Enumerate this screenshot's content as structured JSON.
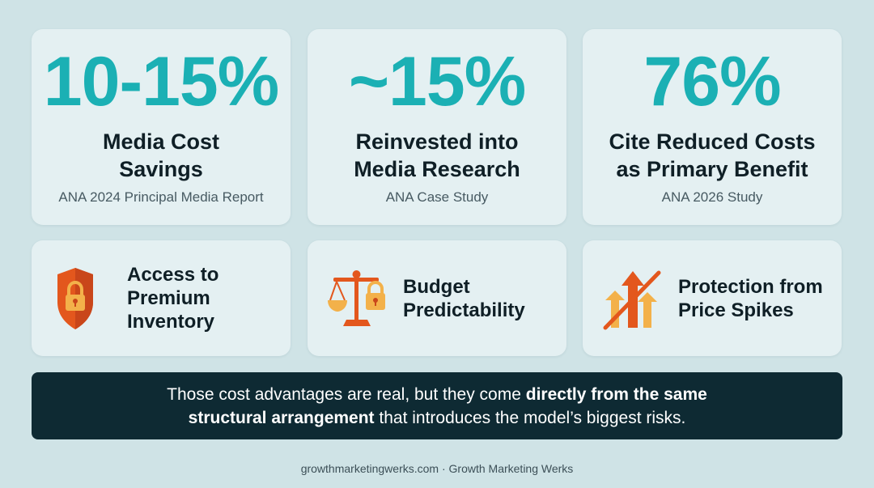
{
  "stats": [
    {
      "value": "10-15%",
      "label_line1": "Media Cost",
      "label_line2": "Savings",
      "source": "ANA 2024 Principal Media Report"
    },
    {
      "value": "~15%",
      "label_line1": "Reinvested into",
      "label_line2": "Media Research",
      "source": "ANA Case Study"
    },
    {
      "value": "76%",
      "label_line1": "Cite Reduced Costs",
      "label_line2": "as Primary Benefit",
      "source": "ANA 2026 Study"
    }
  ],
  "features": [
    {
      "icon": "shield-lock-icon",
      "line1": "Access to",
      "line2": "Premium",
      "line3": "Inventory"
    },
    {
      "icon": "scale-lock-icon",
      "line1": "Budget",
      "line2": "Predictability"
    },
    {
      "icon": "price-spike-blocked-icon",
      "line1": "Protection from",
      "line2": "Price Spikes"
    }
  ],
  "banner": {
    "part1": "Those cost advantages are real, but they come ",
    "bold1": "directly from the same",
    "bold2": "structural arrangement",
    "part2": " that introduces the model’s biggest risks."
  },
  "footer": "growthmarketingwerks.com · Growth Marketing Werks",
  "colors": {
    "background": "#cfe3e6",
    "card": "#e4f0f2",
    "accent_teal": "#1bb0b4",
    "icon_orange": "#e3571d",
    "icon_amber": "#f3b14a",
    "banner": "#0e2a33"
  }
}
